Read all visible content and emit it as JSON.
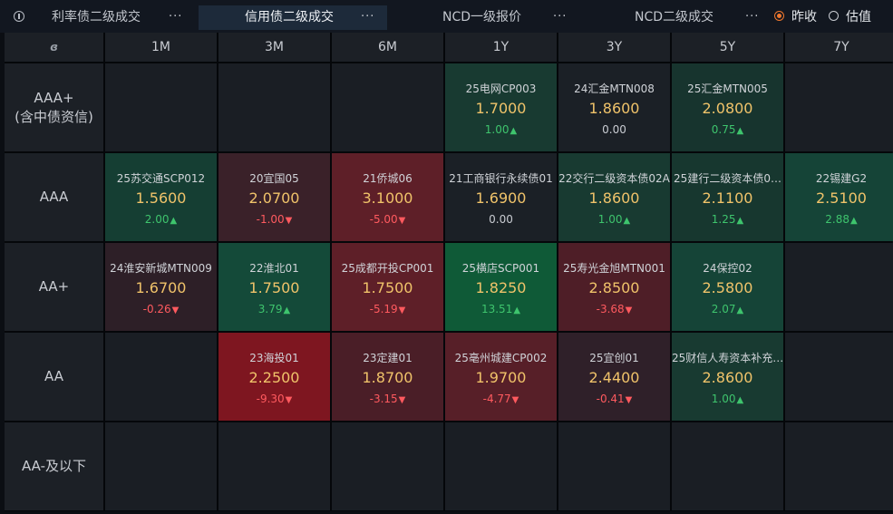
{
  "tabs": [
    {
      "label": "利率债二级成交",
      "more": "···",
      "active": false
    },
    {
      "label": "信用债二级成交",
      "more": "···",
      "active": true
    },
    {
      "label": "NCD一级报价",
      "more": "···",
      "active": false
    },
    {
      "label": "NCD二级成交",
      "more": "···",
      "active": false
    }
  ],
  "radio": {
    "option1": "昨收",
    "option2": "估值",
    "selected": "昨收"
  },
  "corner_icon": "ɞ",
  "columns": [
    "1M",
    "3M",
    "6M",
    "1Y",
    "3Y",
    "5Y",
    "7Y"
  ],
  "colors": {
    "up": "#3ec46d",
    "down": "#ff5a5f",
    "rate": "#f0c36a",
    "green_light": "#1a3530",
    "green_mid": "#15433a",
    "green_strong": "#0f5535",
    "red_light": "#3a2028",
    "red_mid": "#5a1e26",
    "red_strong": "#7a1620",
    "neutral": "#1a1e24"
  },
  "rows": [
    {
      "label": "AAA+\n(含中债资信)",
      "cells": [
        null,
        null,
        null,
        {
          "name": "25电网CP003",
          "rate": "1.7000",
          "change": "1.00",
          "dir": "up",
          "bg": "#183a31"
        },
        {
          "name": "24汇金MTN008",
          "rate": "1.8600",
          "change": "0.00",
          "dir": "flat",
          "bg": "#1b2026"
        },
        {
          "name": "25汇金MTN005",
          "rate": "2.0800",
          "change": "0.75",
          "dir": "up",
          "bg": "#17342e"
        },
        null
      ]
    },
    {
      "label": "AAA",
      "cells": [
        {
          "name": "25苏交通SCP012",
          "rate": "1.5600",
          "change": "2.00",
          "dir": "up",
          "bg": "#153e33"
        },
        {
          "name": "20宜国05",
          "rate": "2.0700",
          "change": "-1.00",
          "dir": "down",
          "bg": "#3a2129"
        },
        {
          "name": "21侨城06",
          "rate": "3.1000",
          "change": "-5.00",
          "dir": "down",
          "bg": "#5e1f28"
        },
        {
          "name": "21工商银行永续债01",
          "rate": "1.6900",
          "change": "0.00",
          "dir": "flat",
          "bg": "#1b2026"
        },
        {
          "name": "22交行二级资本债02A",
          "rate": "1.8600",
          "change": "1.00",
          "dir": "up",
          "bg": "#183a31"
        },
        {
          "name": "25建行二级资本债0…",
          "rate": "2.1100",
          "change": "1.25",
          "dir": "up",
          "bg": "#17372f"
        },
        {
          "name": "22锡建G2",
          "rate": "2.5100",
          "change": "2.88",
          "dir": "up",
          "bg": "#154437"
        }
      ]
    },
    {
      "label": "AA+",
      "cells": [
        {
          "name": "24淮安新城MTN009",
          "rate": "1.6700",
          "change": "-0.26",
          "dir": "down",
          "bg": "#2d1f27"
        },
        {
          "name": "22淮北01",
          "rate": "1.7500",
          "change": "3.79",
          "dir": "up",
          "bg": "#144a39"
        },
        {
          "name": "25成都开投CP001",
          "rate": "1.7500",
          "change": "-5.19",
          "dir": "down",
          "bg": "#5e1f28"
        },
        {
          "name": "25横店SCP001",
          "rate": "1.8250",
          "change": "13.51",
          "dir": "up",
          "bg": "#0f5a37"
        },
        {
          "name": "25寿光金旭MTN001",
          "rate": "2.8500",
          "change": "-3.68",
          "dir": "down",
          "bg": "#4e1e27"
        },
        {
          "name": "24保控02",
          "rate": "2.5800",
          "change": "2.07",
          "dir": "up",
          "bg": "#154437"
        },
        null
      ]
    },
    {
      "label": "AA",
      "cells": [
        null,
        {
          "name": "23海投01",
          "rate": "2.2500",
          "change": "-9.30",
          "dir": "down",
          "bg": "#7e1620"
        },
        {
          "name": "23定建01",
          "rate": "1.8700",
          "change": "-3.15",
          "dir": "down",
          "bg": "#4a1e27"
        },
        {
          "name": "25亳州城建CP002",
          "rate": "1.9700",
          "change": "-4.77",
          "dir": "down",
          "bg": "#571f28"
        },
        {
          "name": "25宜创01",
          "rate": "2.4400",
          "change": "-0.41",
          "dir": "down",
          "bg": "#2f2029"
        },
        {
          "name": "25财信人寿资本补充…",
          "rate": "2.8600",
          "change": "1.00",
          "dir": "up",
          "bg": "#183a31"
        },
        null
      ]
    },
    {
      "label": "AA-及以下",
      "cells": [
        null,
        null,
        null,
        null,
        null,
        null,
        null
      ]
    }
  ]
}
